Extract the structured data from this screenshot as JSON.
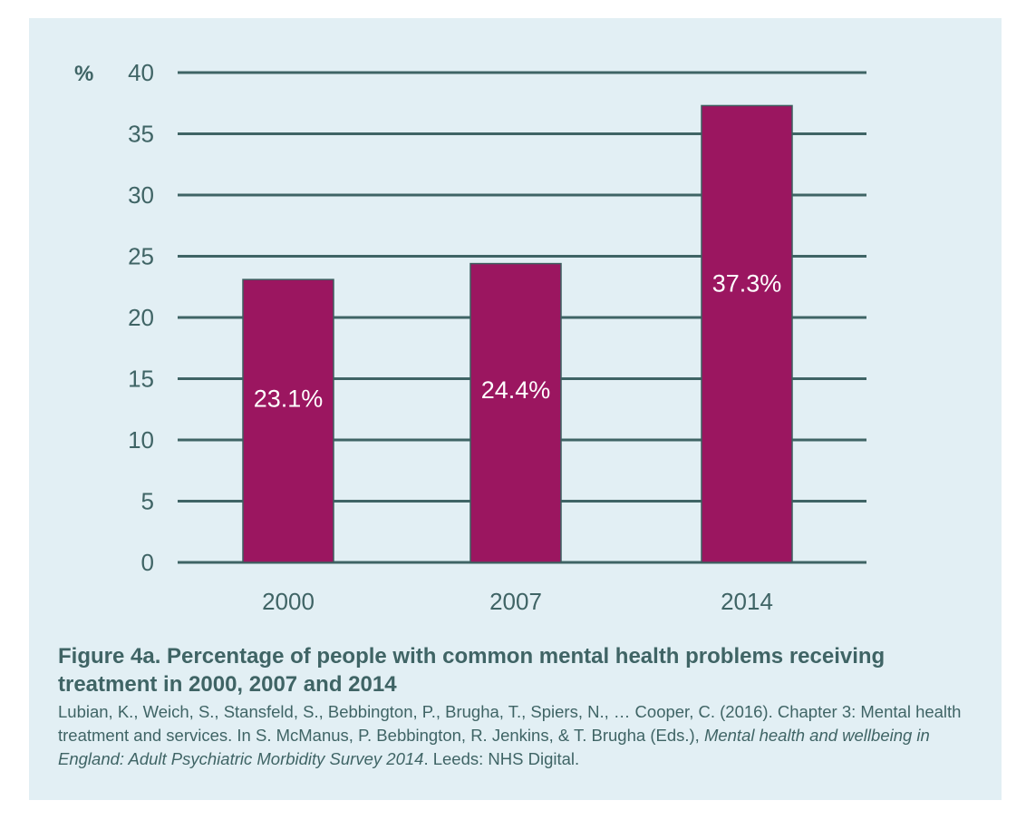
{
  "chart_data": {
    "type": "bar",
    "categories": [
      "2000",
      "2007",
      "2014"
    ],
    "values": [
      23.1,
      24.4,
      37.3
    ],
    "data_labels": [
      "23.1%",
      "24.4%",
      "37.3%"
    ],
    "ylabel": "%",
    "ylim": [
      0,
      40
    ],
    "yticks": [
      "0",
      "5",
      "10",
      "15",
      "20",
      "25",
      "30",
      "35",
      "40"
    ],
    "grid": true,
    "colors": {
      "bar": "#9b1660",
      "grid": "#3f6465",
      "background": "#e2eff4",
      "text": "#3f6465"
    }
  },
  "caption": {
    "title": "Figure 4a. Percentage of people with common mental health problems receiving treatment in 2000, 2007 and 2014",
    "source_plain_1": "Lubian, K., Weich, S., Stansfeld, S., Bebbington, P., Brugha, T., Spiers, N., … Cooper, C. (2016). Chapter 3: Mental health treatment and services. In S. McManus, P. Bebbington, R. Jenkins, & T. Brugha (Eds.), ",
    "source_italic": "Mental health and wellbeing in England: Adult Psychiatric Morbidity Survey 2014",
    "source_plain_2": ". Leeds: NHS Digital."
  }
}
